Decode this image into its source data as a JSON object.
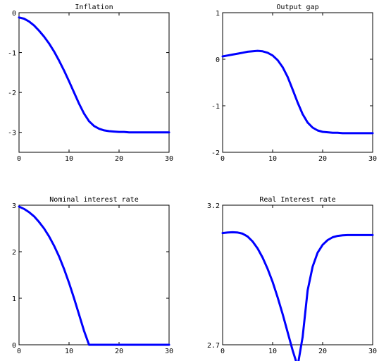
{
  "chart_data": [
    {
      "type": "line",
      "title": "Inflation",
      "xlim": [
        0,
        30
      ],
      "ylim": [
        -3.5,
        0
      ],
      "xticks": [
        0,
        10,
        20,
        30
      ],
      "yticks": [
        -3,
        -2,
        -1,
        0
      ],
      "xtick_labels": [
        "0",
        "10",
        "20",
        "30"
      ],
      "ytick_labels": [
        "-3",
        "-2",
        "-1",
        "0"
      ],
      "grid": false,
      "series": [
        {
          "color": "#0000ff",
          "x": [
            0,
            1,
            2,
            3,
            4,
            5,
            6,
            7,
            8,
            9,
            10,
            11,
            12,
            13,
            14,
            15,
            16,
            17,
            18,
            19,
            20,
            21,
            22,
            23,
            24,
            25,
            26,
            27,
            28,
            29,
            30
          ],
          "y": [
            -0.12,
            -0.15,
            -0.22,
            -0.32,
            -0.45,
            -0.6,
            -0.77,
            -0.97,
            -1.2,
            -1.45,
            -1.72,
            -2.0,
            -2.28,
            -2.53,
            -2.72,
            -2.84,
            -2.91,
            -2.95,
            -2.97,
            -2.98,
            -2.99,
            -2.99,
            -3.0,
            -3.0,
            -3.0,
            -3.0,
            -3.0,
            -3.0,
            -3.0,
            -3.0,
            -3.0
          ]
        }
      ]
    },
    {
      "type": "line",
      "title": "Output gap",
      "xlim": [
        0,
        30
      ],
      "ylim": [
        -2,
        1
      ],
      "xticks": [
        0,
        10,
        20,
        30
      ],
      "yticks": [
        -2,
        -1,
        0,
        1
      ],
      "xtick_labels": [
        "0",
        "10",
        "20",
        "30"
      ],
      "ytick_labels": [
        "-2",
        "-1",
        "0",
        "1"
      ],
      "grid": false,
      "series": [
        {
          "color": "#0000ff",
          "x": [
            0,
            1,
            2,
            3,
            4,
            5,
            6,
            7,
            8,
            9,
            10,
            11,
            12,
            13,
            14,
            15,
            16,
            17,
            18,
            19,
            20,
            21,
            22,
            23,
            24,
            25,
            26,
            27,
            28,
            29,
            30
          ],
          "y": [
            0.06,
            0.08,
            0.1,
            0.12,
            0.14,
            0.16,
            0.17,
            0.18,
            0.17,
            0.14,
            0.08,
            -0.02,
            -0.17,
            -0.38,
            -0.65,
            -0.93,
            -1.18,
            -1.36,
            -1.47,
            -1.53,
            -1.56,
            -1.57,
            -1.58,
            -1.58,
            -1.59,
            -1.59,
            -1.59,
            -1.59,
            -1.59,
            -1.59,
            -1.59
          ]
        }
      ]
    },
    {
      "type": "line",
      "title": "Nominal interest rate",
      "xlim": [
        0,
        30
      ],
      "ylim": [
        0,
        3
      ],
      "xticks": [
        0,
        10,
        20,
        30
      ],
      "yticks": [
        0,
        1,
        2,
        3
      ],
      "xtick_labels": [
        "0",
        "10",
        "20",
        "30"
      ],
      "ytick_labels": [
        "0",
        "1",
        "2",
        "3"
      ],
      "grid": false,
      "series": [
        {
          "color": "#0000ff",
          "x": [
            0,
            1,
            2,
            3,
            4,
            5,
            6,
            7,
            8,
            9,
            10,
            11,
            12,
            13,
            14,
            15,
            16,
            17,
            18,
            19,
            20,
            21,
            22,
            23,
            24,
            25,
            26,
            27,
            28,
            29,
            30
          ],
          "y": [
            2.97,
            2.92,
            2.85,
            2.76,
            2.64,
            2.5,
            2.33,
            2.13,
            1.9,
            1.63,
            1.33,
            1.0,
            0.65,
            0.3,
            0.0,
            0.0,
            0.0,
            0.0,
            0.0,
            0.0,
            0.0,
            0.0,
            0.0,
            0.0,
            0.0,
            0.0,
            0.0,
            0.0,
            0.0,
            0.0,
            0.0
          ]
        }
      ]
    },
    {
      "type": "line",
      "title": "Real Interest rate",
      "xlim": [
        0,
        30
      ],
      "ylim": [
        2.7,
        3.2
      ],
      "xticks": [
        0,
        10,
        20,
        30
      ],
      "yticks": [
        2.7,
        3.2
      ],
      "xtick_labels": [
        "0",
        "10",
        "20",
        "30"
      ],
      "ytick_labels": [
        "2.7",
        "3.2"
      ],
      "grid": false,
      "series": [
        {
          "color": "#0000ff",
          "x": [
            0,
            1,
            2,
            3,
            4,
            5,
            6,
            7,
            8,
            9,
            10,
            11,
            12,
            13,
            14,
            15,
            16,
            17,
            18,
            19,
            20,
            21,
            22,
            23,
            24,
            25,
            26,
            27,
            28,
            29,
            30
          ],
          "y": [
            3.1,
            3.102,
            3.103,
            3.102,
            3.098,
            3.088,
            3.07,
            3.045,
            3.012,
            2.972,
            2.925,
            2.87,
            2.81,
            2.745,
            2.68,
            2.623,
            2.728,
            2.895,
            2.98,
            3.03,
            3.058,
            3.075,
            3.085,
            3.09,
            3.092,
            3.093,
            3.093,
            3.093,
            3.093,
            3.093,
            3.093
          ]
        }
      ]
    }
  ]
}
